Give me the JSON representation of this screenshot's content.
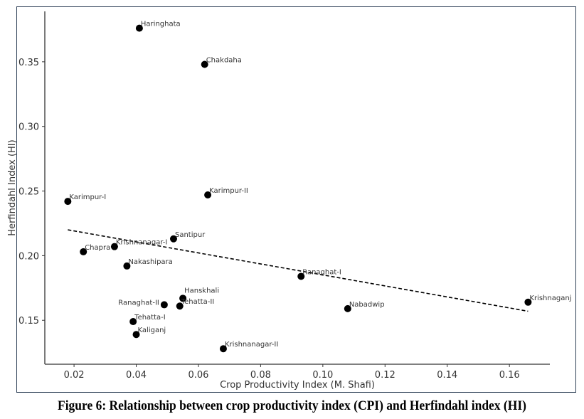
{
  "caption": "Figure 6: Relationship between crop productivity index (CPI) and Herfindahl index (HI)",
  "chart_data": {
    "type": "scatter",
    "title": "",
    "xlabel": "Crop Productivity Index (M. Shafi)",
    "ylabel": "Herfindahl Index (HI)",
    "xlim": [
      0.0106,
      0.173
    ],
    "ylim": [
      0.116,
      0.389
    ],
    "xticks": [
      0.02,
      0.04,
      0.06,
      0.08,
      0.1,
      0.12,
      0.14,
      0.16
    ],
    "xtick_labels": [
      "0.02",
      "0.04",
      "0.06",
      "0.08",
      "0.10",
      "0.12",
      "0.14",
      "0.16"
    ],
    "yticks": [
      0.15,
      0.2,
      0.25,
      0.3,
      0.35
    ],
    "ytick_labels": [
      "0.15",
      "0.20",
      "0.25",
      "0.30",
      "0.35"
    ],
    "grid": false,
    "points": [
      {
        "label": "Haringhata",
        "x": 0.041,
        "y": 0.376
      },
      {
        "label": "Chakdaha",
        "x": 0.062,
        "y": 0.348
      },
      {
        "label": "Karimpur-II",
        "x": 0.063,
        "y": 0.247
      },
      {
        "label": "Karimpur-I",
        "x": 0.018,
        "y": 0.242
      },
      {
        "label": "Santipur",
        "x": 0.052,
        "y": 0.213
      },
      {
        "label": "Krishnanagar-I",
        "x": 0.033,
        "y": 0.207
      },
      {
        "label": "Chapra",
        "x": 0.023,
        "y": 0.203
      },
      {
        "label": "Nakashipara",
        "x": 0.037,
        "y": 0.192
      },
      {
        "label": "Ranaghat-I",
        "x": 0.093,
        "y": 0.184
      },
      {
        "label": "Krishnaganj",
        "x": 0.166,
        "y": 0.164
      },
      {
        "label": "Nabadwip",
        "x": 0.108,
        "y": 0.159
      },
      {
        "label": "Hanskhali",
        "x": 0.055,
        "y": 0.167
      },
      {
        "label": "Ranaghat-II",
        "x": 0.049,
        "y": 0.162
      },
      {
        "label": "Tehatta-II",
        "x": 0.054,
        "y": 0.161
      },
      {
        "label": "Tehatta-I",
        "x": 0.039,
        "y": 0.149
      },
      {
        "label": "Kaliganj",
        "x": 0.04,
        "y": 0.139
      },
      {
        "label": "Krishnanagar-II",
        "x": 0.068,
        "y": 0.128
      }
    ],
    "trendline": {
      "style": "dashed",
      "x": [
        0.018,
        0.166
      ],
      "y": [
        0.22,
        0.157
      ]
    },
    "colors": {
      "points": "#000000",
      "trend": "#000000",
      "axes": "#333333"
    }
  }
}
